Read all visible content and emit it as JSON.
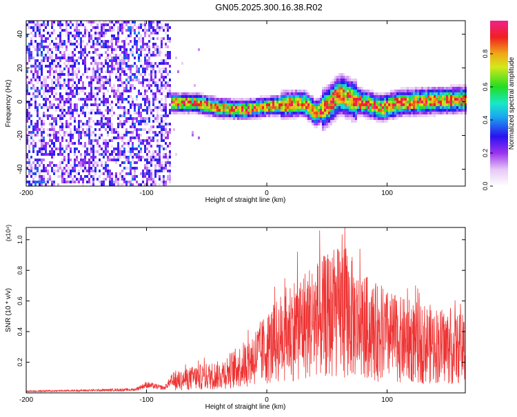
{
  "figure_title": "GN05.2025.300.16.38.R02",
  "colors": {
    "snr_line": "#ee3333",
    "axis": "#000000",
    "background": "#ffffff"
  },
  "chart_data": [
    {
      "type": "heatmap",
      "title": "GN05.2025.300.16.38.R02",
      "xlabel": "Height of straight line (km)",
      "ylabel": "Frequency (Hz)",
      "xlim": [
        -200,
        165
      ],
      "ylim": [
        -50,
        48
      ],
      "xticks": [
        -200,
        -100,
        0,
        100
      ],
      "xtick_labels": [
        "-200",
        "-100",
        "0",
        "100"
      ],
      "yticks": [
        -40,
        -20,
        0,
        20,
        40
      ],
      "ytick_labels": [
        "-40",
        "-20",
        "0",
        "20",
        "40"
      ],
      "ridge": {
        "x": [
          -80,
          -60,
          -40,
          -20,
          0,
          15,
          30,
          40,
          50,
          60,
          70,
          80,
          95,
          110,
          130,
          165
        ],
        "y": [
          0,
          0,
          -3,
          -4,
          -2,
          -1,
          0,
          -6,
          -2,
          5,
          2,
          0,
          -3,
          0,
          1,
          2
        ]
      },
      "noise_region": [
        -200,
        -80
      ],
      "colorbar": {
        "label": "Normalized spectral amplitude",
        "ticks": [
          0.0,
          0.2,
          0.4,
          0.6,
          0.8
        ],
        "tick_labels": [
          "0.0",
          "0.2",
          "0.4",
          "0.6",
          "0.8"
        ],
        "range": [
          0,
          1
        ]
      }
    },
    {
      "type": "line",
      "xlabel": "Height of straight line (km)",
      "ylabel": "SNR (10 * v/v)",
      "scale_label": "(x10⁴)",
      "xlim": [
        -200,
        165
      ],
      "ylim": [
        0,
        1.08
      ],
      "xticks": [
        -200,
        -100,
        0,
        100
      ],
      "xtick_labels": [
        "-200",
        "-100",
        "0",
        "100"
      ],
      "yticks": [
        0.2,
        0.4,
        0.6,
        0.8,
        1.0
      ],
      "ytick_labels": [
        "0.2",
        "0.4",
        "0.6",
        "0.8",
        "1.0"
      ],
      "envelope": {
        "x": [
          -200,
          -150,
          -110,
          -100,
          -85,
          -78,
          -60,
          -40,
          -20,
          0,
          20,
          40,
          55,
          65,
          75,
          90,
          110,
          140,
          165
        ],
        "y": [
          0.01,
          0.015,
          0.02,
          0.05,
          0.03,
          0.09,
          0.12,
          0.14,
          0.22,
          0.35,
          0.5,
          0.58,
          0.62,
          0.66,
          0.55,
          0.48,
          0.42,
          0.38,
          0.34
        ]
      }
    }
  ]
}
